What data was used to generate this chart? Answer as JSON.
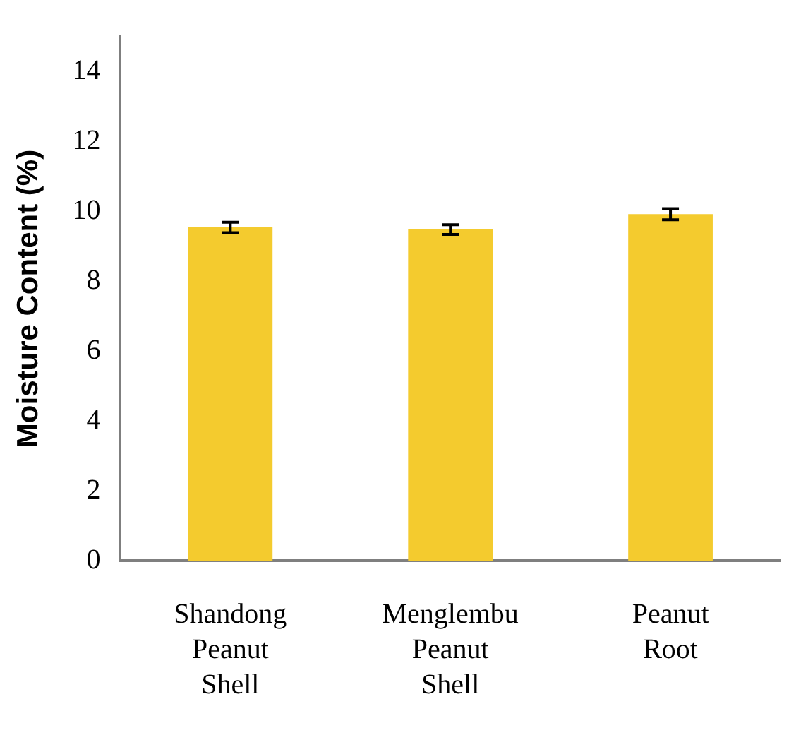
{
  "chart_data": {
    "type": "bar",
    "ylabel": "Moisture Content (%)",
    "categories": [
      "Shandong Peanut Shell",
      "Menglembu Peanut Shell",
      "Peanut Root"
    ],
    "values": [
      9.54,
      9.48,
      9.92
    ],
    "errors": [
      0.15,
      0.14,
      0.16
    ],
    "color": "#f4cb2e",
    "ylim": [
      0,
      15
    ],
    "yticks": [
      0,
      2,
      4,
      6,
      8,
      10,
      12,
      14
    ],
    "grid": false,
    "legend": false
  }
}
